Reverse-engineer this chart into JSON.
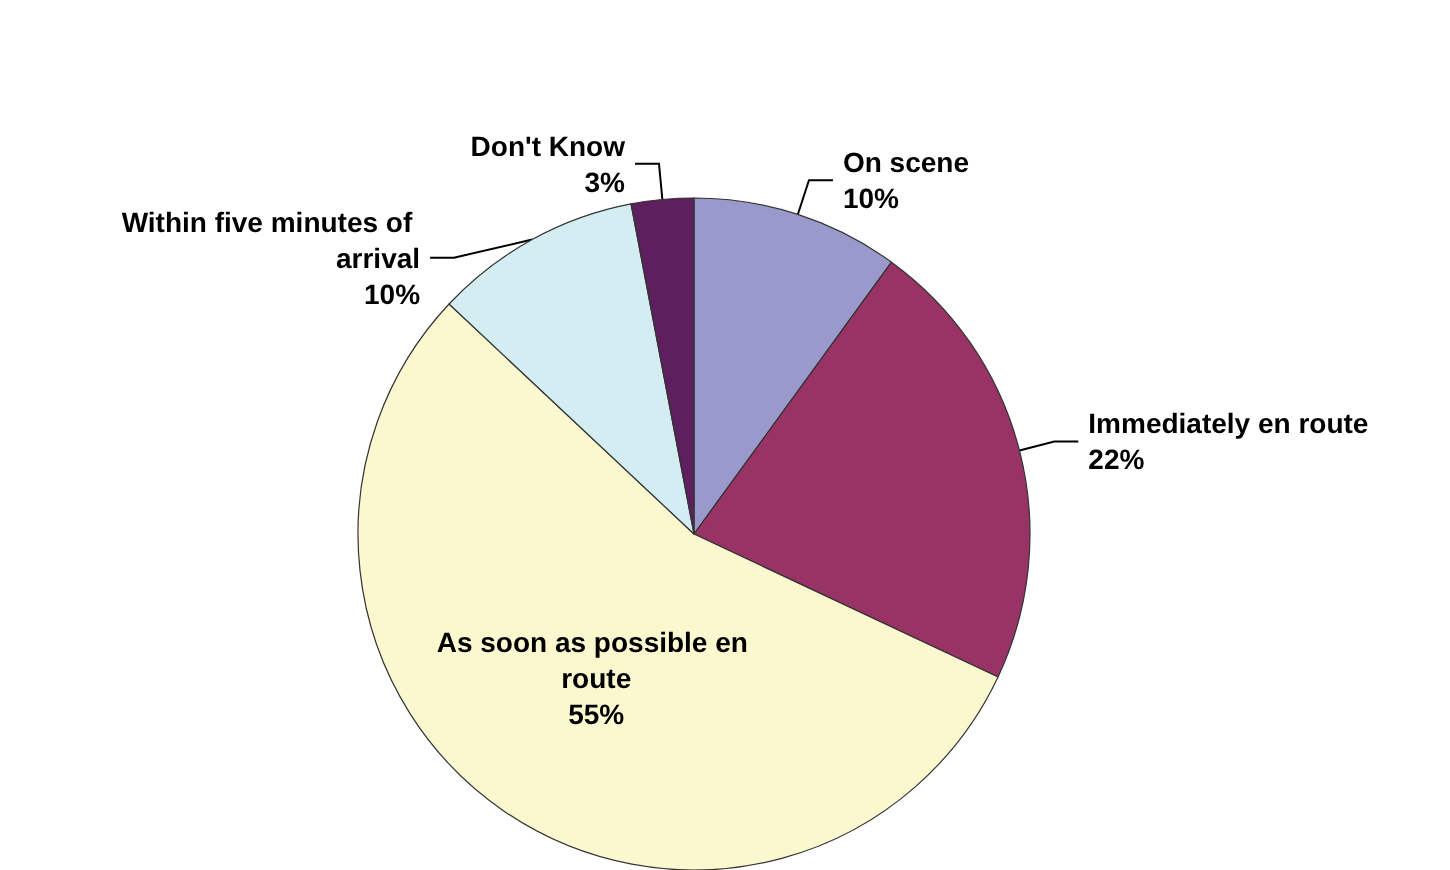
{
  "chart_data": {
    "type": "pie",
    "categories": [
      "On scene",
      "Immediately en route",
      "As soon as possible en route",
      "Within five minutes of arrival",
      "Don't Know"
    ],
    "values": [
      10,
      22,
      55,
      10,
      3
    ],
    "value_labels": [
      "10%",
      "22%",
      "55%",
      "10%",
      "3%"
    ],
    "colors": [
      "#9999cc",
      "#993366",
      "#fbf8d0",
      "#d3edf3",
      "#5e1f5e"
    ]
  }
}
